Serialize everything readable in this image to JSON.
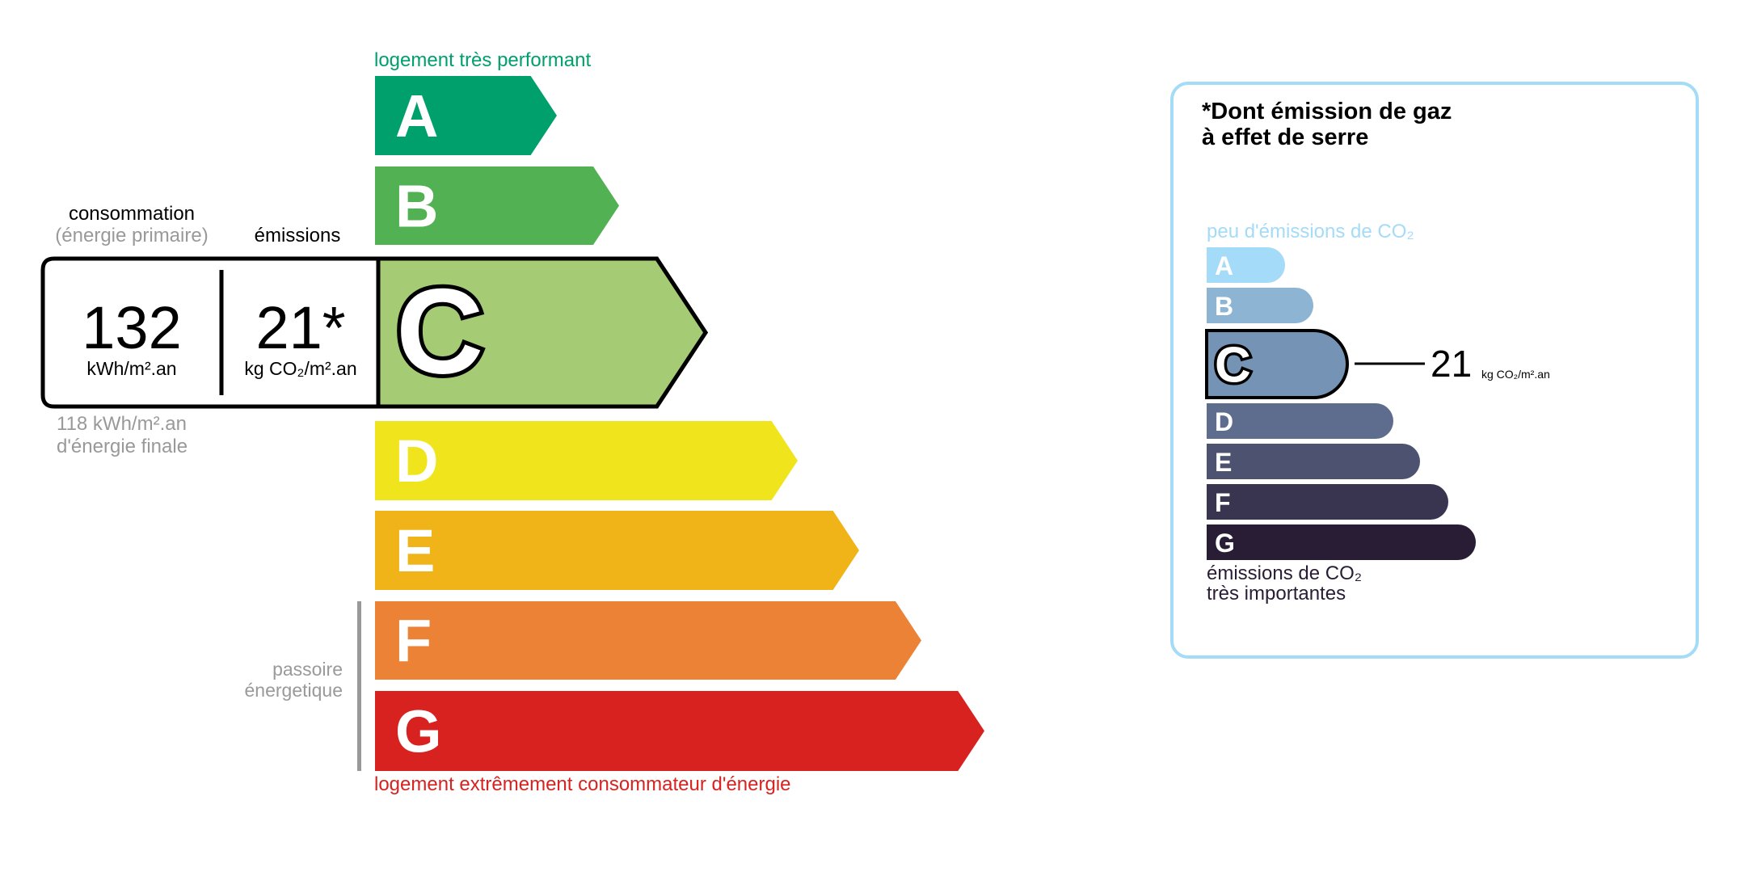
{
  "energy": {
    "top_label": "logement très performant",
    "bottom_label": "logement extrêmement consommateur d'énergie",
    "passoire_label": [
      "passoire",
      "énergetique"
    ],
    "classes": [
      {
        "letter": "A",
        "color": "#00a06d"
      },
      {
        "letter": "B",
        "color": "#52b153"
      },
      {
        "letter": "C",
        "color": "#a5cc74"
      },
      {
        "letter": "D",
        "color": "#f0e51c"
      },
      {
        "letter": "E",
        "color": "#f0b418"
      },
      {
        "letter": "F",
        "color": "#eb8235"
      },
      {
        "letter": "G",
        "color": "#d7221f"
      }
    ],
    "current_class": "C",
    "consommation_label": "consommation",
    "consommation_sub": "(énergie primaire)",
    "emissions_label": "émissions",
    "consommation_value": "132",
    "consommation_unit": "kWh/m².an",
    "emissions_value": "21*",
    "emissions_unit": "kg CO₂/m².an",
    "final_energy_value": "118 kWh/m².an",
    "final_energy_label": "d'énergie finale"
  },
  "ges": {
    "title_line1": "*Dont émission de gaz",
    "title_line2": "à effet de serre",
    "top_label": "peu d'émissions de CO₂",
    "bottom_label_line1": "émissions de CO₂",
    "bottom_label_line2": "très importantes",
    "classes": [
      {
        "letter": "A",
        "color": "#a4dbf8"
      },
      {
        "letter": "B",
        "color": "#8db4d3"
      },
      {
        "letter": "C",
        "color": "#7593b4"
      },
      {
        "letter": "D",
        "color": "#5e6d8e"
      },
      {
        "letter": "E",
        "color": "#4d5271"
      },
      {
        "letter": "F",
        "color": "#393551"
      },
      {
        "letter": "G",
        "color": "#291c35"
      }
    ],
    "current_class": "C",
    "value": "21",
    "unit": "kg CO₂/m².an",
    "border_color": "#a4dbf6"
  }
}
